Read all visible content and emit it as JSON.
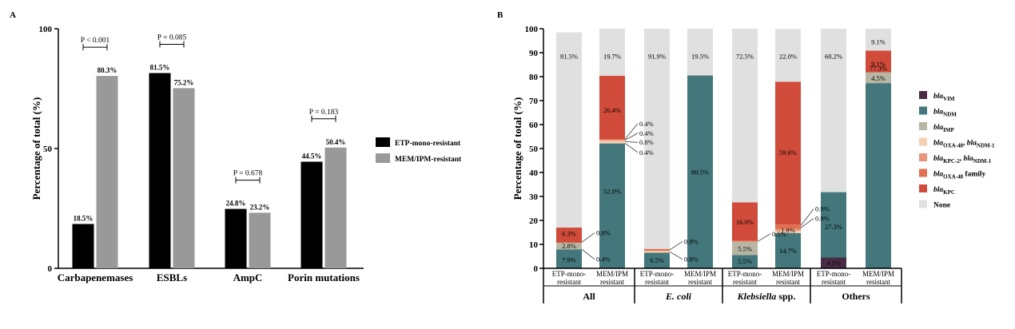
{
  "panelA": {
    "label": "A",
    "chart_data": {
      "type": "bar",
      "title": "",
      "xlabel": "",
      "ylabel": "Percentage of total (%)",
      "ylim": [
        0,
        100
      ],
      "yticks": [
        "0",
        "50",
        "100"
      ],
      "categories": [
        "Carbapenemases",
        "ESBLs",
        "AmpC",
        "Porin mutations"
      ],
      "series": [
        {
          "name": "ETP-mono-resistant",
          "color": "#000000",
          "values": [
            18.5,
            81.5,
            24.8,
            44.5
          ],
          "labels": [
            "18.5%",
            "81.5%",
            "24.8%",
            "44.5%"
          ]
        },
        {
          "name": "MEM/IPM-resistant",
          "color": "#999999",
          "values": [
            80.3,
            75.2,
            23.2,
            50.4
          ],
          "labels": [
            "80.3%",
            "75.2%",
            "23.2%",
            "50.4%"
          ]
        }
      ],
      "pvalues": [
        "P < 0.001",
        "P = 0.085",
        "P = 0.678",
        "P = 0.183"
      ],
      "legend": [
        "ETP-mono-resistant",
        "MEM/IPM-resistant"
      ]
    }
  },
  "panelB": {
    "label": "B",
    "chart_data": {
      "type": "bar",
      "stacked": true,
      "ylabel": "Percentage of total (%)",
      "ylim": [
        0,
        100
      ],
      "yticks": [
        "0",
        "10",
        "20",
        "30",
        "40",
        "50",
        "60",
        "70",
        "80",
        "90",
        "100"
      ],
      "categories": [
        "ETP-mono-resistant",
        "MEM/IPM resistant",
        "ETP-mono-resistant",
        "MEM/IPM resistant",
        "ETP-mono-resistant",
        "MEM/IPM resistant",
        "ETP-mono-resistant",
        "MEM/IPM resistant"
      ],
      "tick_labels": [
        [
          "ETP-mono-",
          "resistant"
        ],
        [
          "MEM/IPM",
          "resistant"
        ],
        [
          "ETP-mono-",
          "resistant"
        ],
        [
          "MEM/IPM",
          "resistant"
        ],
        [
          "ETP-mono-",
          "resistant"
        ],
        [
          "MEM/IPM",
          "resistant"
        ],
        [
          "ETP-mono-",
          "resistant"
        ],
        [
          "MEM/IPM",
          "resistant"
        ]
      ],
      "groups": [
        "All",
        "E. coli",
        "Klebsiella spp.",
        "Others"
      ],
      "group_style": [
        "normal",
        "italic",
        "mixed",
        "normal"
      ],
      "series": [
        {
          "name": "blaVIM",
          "base": "bla",
          "sub": "VIM",
          "color": "#4a2b45",
          "values": [
            0,
            0,
            0,
            0,
            0,
            0,
            4.5,
            0
          ]
        },
        {
          "name": "blaNDM",
          "base": "bla",
          "sub": "NDM",
          "color": "#43777b",
          "values": [
            7.9,
            52.0,
            6.5,
            80.5,
            5.5,
            14.7,
            27.3,
            77.3
          ]
        },
        {
          "name": "blaIMP",
          "base": "bla",
          "sub": "IMP",
          "color": "#b7b5a3",
          "values": [
            2.8,
            0.4,
            0,
            0,
            5.5,
            0,
            0,
            4.5
          ]
        },
        {
          "name": "blaOXA-48, blaNDM-1",
          "base": "bla",
          "sub": "OXA-48",
          "base2": ", bla",
          "sub2": "NDM-1",
          "color": "#f4cfb2",
          "values": [
            0,
            0.8,
            0.8,
            0,
            0,
            0.9,
            0,
            0
          ]
        },
        {
          "name": "blaKPC-2, blaNDM-1",
          "base": "bla",
          "sub": "KPC-2",
          "base2": ", bla",
          "sub2": "NDM-1",
          "color": "#e9967a",
          "values": [
            0,
            0.4,
            0,
            0,
            0.5,
            0.9,
            0,
            0
          ]
        },
        {
          "name": "blaOXA-48 family",
          "base": "bla",
          "sub": "OXA-48",
          "base2": " family",
          "sub2": "",
          "color": "#e07050",
          "values": [
            0,
            0.4,
            0.8,
            0,
            0,
            1.8,
            0,
            0
          ]
        },
        {
          "name": "blaKPC",
          "base": "bla",
          "sub": "KPC",
          "color": "#d14b3a",
          "values": [
            6.3,
            26.4,
            0,
            0,
            16.0,
            59.6,
            0,
            9.1
          ]
        },
        {
          "name": "None",
          "base": "None",
          "sub": "",
          "color": "#e0e0e0",
          "values": [
            81.5,
            19.7,
            91.9,
            19.5,
            72.5,
            22.0,
            68.2,
            9.1
          ]
        }
      ],
      "segment_labels": [
        {
          "bar": 0,
          "text": "7.9%",
          "y": 3.5,
          "inside": true
        },
        {
          "bar": 0,
          "text": "2.8%",
          "y": 9.3,
          "inside": true
        },
        {
          "bar": 0,
          "text": "6.3%",
          "y": 14.5,
          "inside": true
        },
        {
          "bar": 0,
          "text": "81.5%",
          "y": 88.5,
          "inside": true
        },
        {
          "bar": 0,
          "text": "0.4%",
          "y": 3.8,
          "inside": false,
          "dx": 18,
          "from": 7.9
        },
        {
          "bar": 0,
          "text": "0.8%",
          "y": 14.8,
          "inside": false,
          "dx": 18,
          "from": 10.9
        },
        {
          "bar": 1,
          "text": "52.0%",
          "y": 32.2,
          "inside": true
        },
        {
          "bar": 1,
          "text": "26.4%",
          "y": 66.0,
          "inside": true
        },
        {
          "bar": 1,
          "text": "19.7%",
          "y": 88.5,
          "inside": true
        },
        {
          "bar": 1,
          "text": "0.4%",
          "y": 48.4,
          "inside": false,
          "dx": 18,
          "from": 52.2
        },
        {
          "bar": 1,
          "text": "0.8%",
          "y": 52.6,
          "inside": false,
          "dx": 18,
          "from": 52.8
        },
        {
          "bar": 1,
          "text": "0.4%",
          "y": 56.4,
          "inside": false,
          "dx": 18,
          "from": 53.5
        },
        {
          "bar": 1,
          "text": "0.4%",
          "y": 60.4,
          "inside": false,
          "dx": 18,
          "from": 53.9
        },
        {
          "bar": 2,
          "text": "6.5%",
          "y": 3.3,
          "inside": true
        },
        {
          "bar": 2,
          "text": "91.9%",
          "y": 88.5,
          "inside": true
        },
        {
          "bar": 2,
          "text": "0.8%",
          "y": 3.8,
          "inside": false,
          "dx": 18,
          "from": 6.9
        },
        {
          "bar": 2,
          "text": "0.8%",
          "y": 11.2,
          "inside": false,
          "dx": 18,
          "from": 7.7
        },
        {
          "bar": 3,
          "text": "80.5%",
          "y": 40.2,
          "inside": true
        },
        {
          "bar": 3,
          "text": "19.5%",
          "y": 88.5,
          "inside": true
        },
        {
          "bar": 4,
          "text": "5.5%",
          "y": 3.0,
          "inside": true
        },
        {
          "bar": 4,
          "text": "5.5%",
          "y": 8.2,
          "inside": true
        },
        {
          "bar": 4,
          "text": "16.0%",
          "y": 19.4,
          "inside": true
        },
        {
          "bar": 4,
          "text": "72.5%",
          "y": 88.5,
          "inside": true
        },
        {
          "bar": 4,
          "text": "0.5%",
          "y": 14.4,
          "inside": false,
          "dx": 18,
          "from": 11.2
        },
        {
          "bar": 5,
          "text": "14.7%",
          "y": 7.3,
          "inside": true
        },
        {
          "bar": 5,
          "text": "1.8%",
          "y": 15.8,
          "inside": true
        },
        {
          "bar": 5,
          "text": "59.6%",
          "y": 48.4,
          "inside": true
        },
        {
          "bar": 5,
          "text": "22.0%",
          "y": 88.5,
          "inside": true
        },
        {
          "bar": 5,
          "text": "0.9%",
          "y": 20.8,
          "inside": false,
          "dx": 18,
          "from": 16.9
        },
        {
          "bar": 5,
          "text": "0.9%",
          "y": 24.8,
          "inside": false,
          "dx": 18,
          "from": 17.8
        },
        {
          "bar": 6,
          "text": "4.5%",
          "y": 2.2,
          "inside": true
        },
        {
          "bar": 6,
          "text": "27.3%",
          "y": 17.3,
          "inside": true
        },
        {
          "bar": 6,
          "text": "68.2%",
          "y": 88.5,
          "inside": true
        },
        {
          "bar": 7,
          "text": "77.3%",
          "y": 83.5,
          "inside": true
        },
        {
          "bar": 7,
          "text": "4.5%",
          "y": 79.3,
          "inside": true
        },
        {
          "bar": 7,
          "text": "9.1%",
          "y": 85.4,
          "inside": true
        },
        {
          "bar": 7,
          "text": "9.1%",
          "y": 94.5,
          "inside": true
        }
      ]
    }
  }
}
